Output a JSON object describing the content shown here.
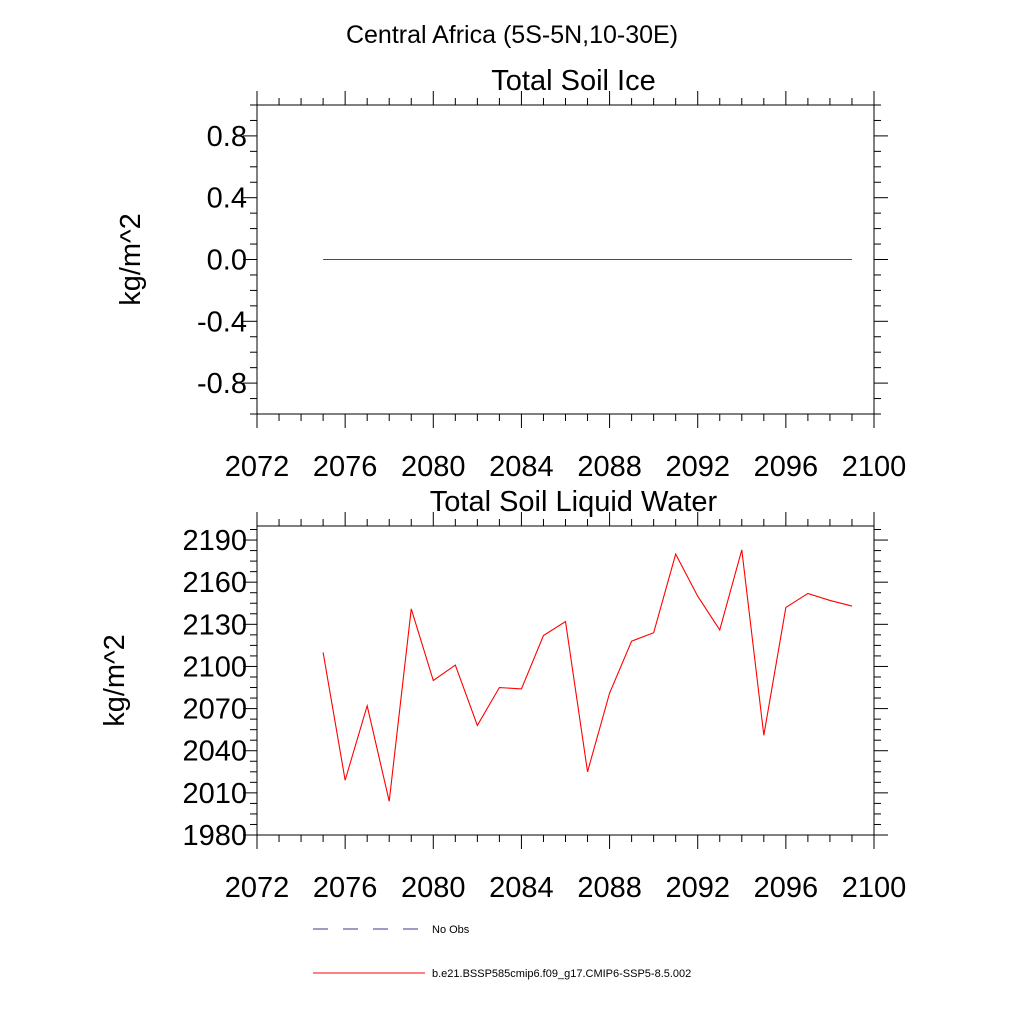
{
  "figure": {
    "title": "Central Africa (5S-5N,10-30E)"
  },
  "chart_data": [
    {
      "type": "line",
      "title": "Total Soil Ice",
      "xlabel": "",
      "ylabel": "kg/m^2",
      "xlim": [
        2072,
        2100
      ],
      "ylim": [
        -1.0,
        1.0
      ],
      "x_ticks": [
        2072,
        2076,
        2080,
        2084,
        2088,
        2092,
        2096,
        2100
      ],
      "x_tick_labels": [
        "2072",
        "2076",
        "2080",
        "2084",
        "2088",
        "2092",
        "2096",
        "2100"
      ],
      "y_ticks": [
        -0.8,
        -0.4,
        0.0,
        0.4,
        0.8
      ],
      "y_tick_labels": [
        "-0.8",
        "-0.4",
        "0.0",
        "0.4",
        "0.8"
      ],
      "grid": false,
      "series": [
        {
          "name": "b.e21.BSSP585cmip6.f09_g17.CMIP6-SSP5-8.5.002",
          "color": "#ff0000",
          "x": [
            2075,
            2076,
            2077,
            2078,
            2079,
            2080,
            2081,
            2082,
            2083,
            2084,
            2085,
            2086,
            2087,
            2088,
            2089,
            2090,
            2091,
            2092,
            2093,
            2094,
            2095,
            2096,
            2097,
            2098,
            2099
          ],
          "values": [
            0,
            0,
            0,
            0,
            0,
            0,
            0,
            0,
            0,
            0,
            0,
            0,
            0,
            0,
            0,
            0,
            0,
            0,
            0,
            0,
            0,
            0,
            0,
            0,
            0
          ]
        }
      ]
    },
    {
      "type": "line",
      "title": "Total Soil Liquid Water",
      "xlabel": "",
      "ylabel": "kg/m^2",
      "xlim": [
        2072,
        2100
      ],
      "ylim": [
        1980,
        2200
      ],
      "x_ticks": [
        2072,
        2076,
        2080,
        2084,
        2088,
        2092,
        2096,
        2100
      ],
      "x_tick_labels": [
        "2072",
        "2076",
        "2080",
        "2084",
        "2088",
        "2092",
        "2096",
        "2100"
      ],
      "y_ticks": [
        1980,
        2010,
        2040,
        2070,
        2100,
        2130,
        2160,
        2190
      ],
      "y_tick_labels": [
        "1980",
        "2010",
        "2040",
        "2070",
        "2100",
        "2130",
        "2160",
        "2190"
      ],
      "grid": false,
      "series": [
        {
          "name": "b.e21.BSSP585cmip6.f09_g17.CMIP6-SSP5-8.5.002",
          "color": "#ff0000",
          "x": [
            2075,
            2076,
            2077,
            2078,
            2079,
            2080,
            2081,
            2082,
            2083,
            2084,
            2085,
            2086,
            2087,
            2088,
            2089,
            2090,
            2091,
            2092,
            2093,
            2094,
            2095,
            2096,
            2097,
            2098,
            2099
          ],
          "values": [
            2110,
            2019,
            2072,
            2004,
            2141,
            2090,
            2101,
            2058,
            2085,
            2084,
            2122,
            2132,
            2025,
            2081,
            2118,
            2124,
            2180,
            2150,
            2126,
            2183,
            2051,
            2142,
            2152,
            2147,
            2143
          ]
        }
      ]
    }
  ],
  "legend": {
    "placement": "bottom",
    "items": [
      {
        "label": "No Obs",
        "style": "dashed",
        "color": "#3a3a8c"
      },
      {
        "label": "b.e21.BSSP585cmip6.f09_g17.CMIP6-SSP5-8.5.002",
        "style": "solid",
        "color": "#ff0000"
      }
    ]
  }
}
